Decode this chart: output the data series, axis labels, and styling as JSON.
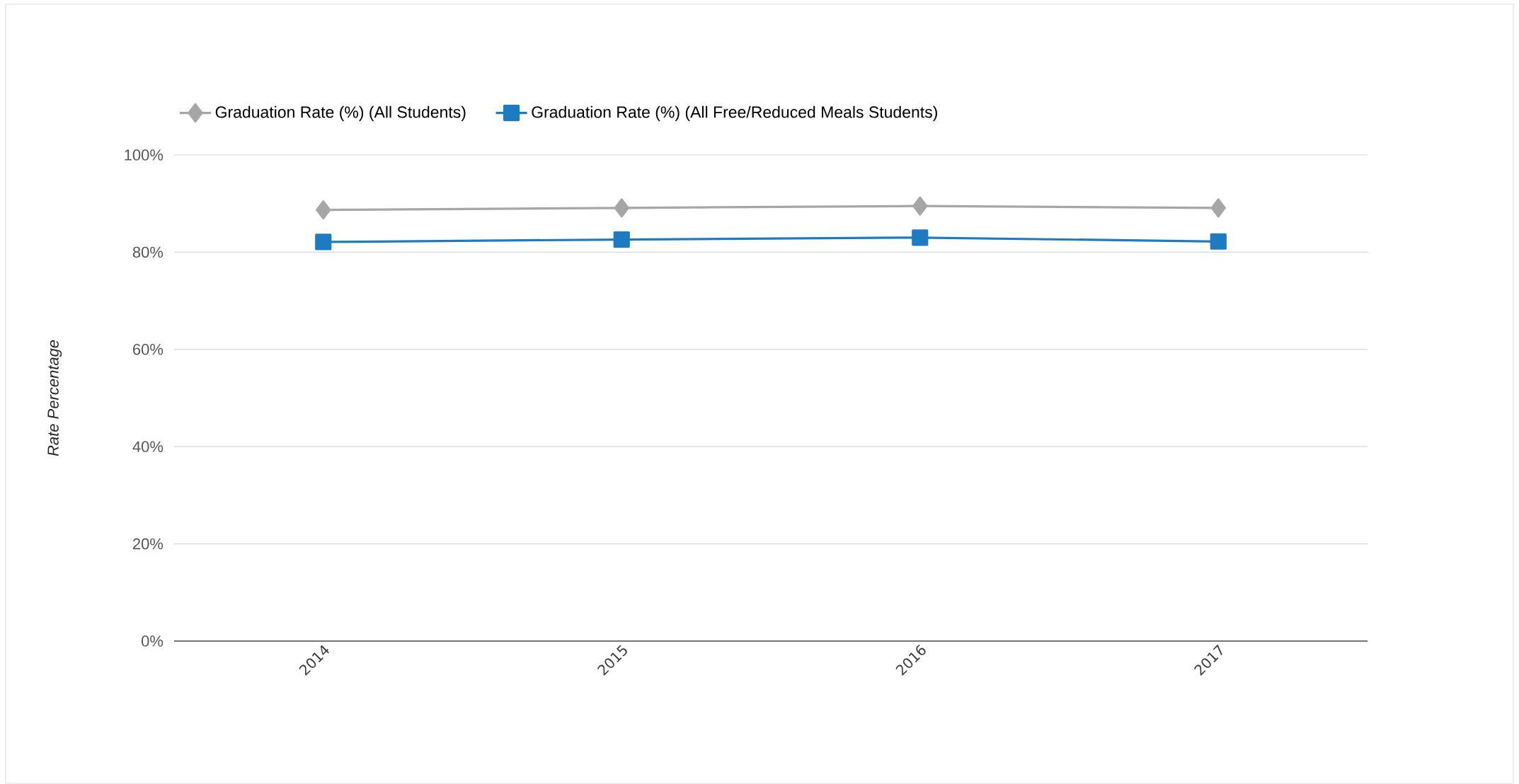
{
  "chart_data": {
    "type": "line",
    "ylabel": "Rate Percentage",
    "categories": [
      "2014",
      "2015",
      "2016",
      "2017"
    ],
    "series": [
      {
        "name": "Graduation Rate (%) (All Students)",
        "color": "#a6a6a6",
        "marker": "diamond",
        "values": [
          88.7,
          89.1,
          89.5,
          89.1
        ]
      },
      {
        "name": "Graduation Rate (%) (All Free/Reduced Meals Students)",
        "color": "#1f7bc1",
        "marker": "square",
        "values": [
          82.1,
          82.6,
          83.0,
          82.2
        ]
      }
    ],
    "ylim": [
      0,
      100
    ],
    "yticks": [
      {
        "value": 0,
        "label": "0%"
      },
      {
        "value": 20,
        "label": "20%"
      },
      {
        "value": 40,
        "label": "40%"
      },
      {
        "value": 60,
        "label": "60%"
      },
      {
        "value": 80,
        "label": "80%"
      },
      {
        "value": 100,
        "label": "100%"
      }
    ],
    "grid": "y",
    "legend": "top left",
    "line_style": "solid"
  }
}
